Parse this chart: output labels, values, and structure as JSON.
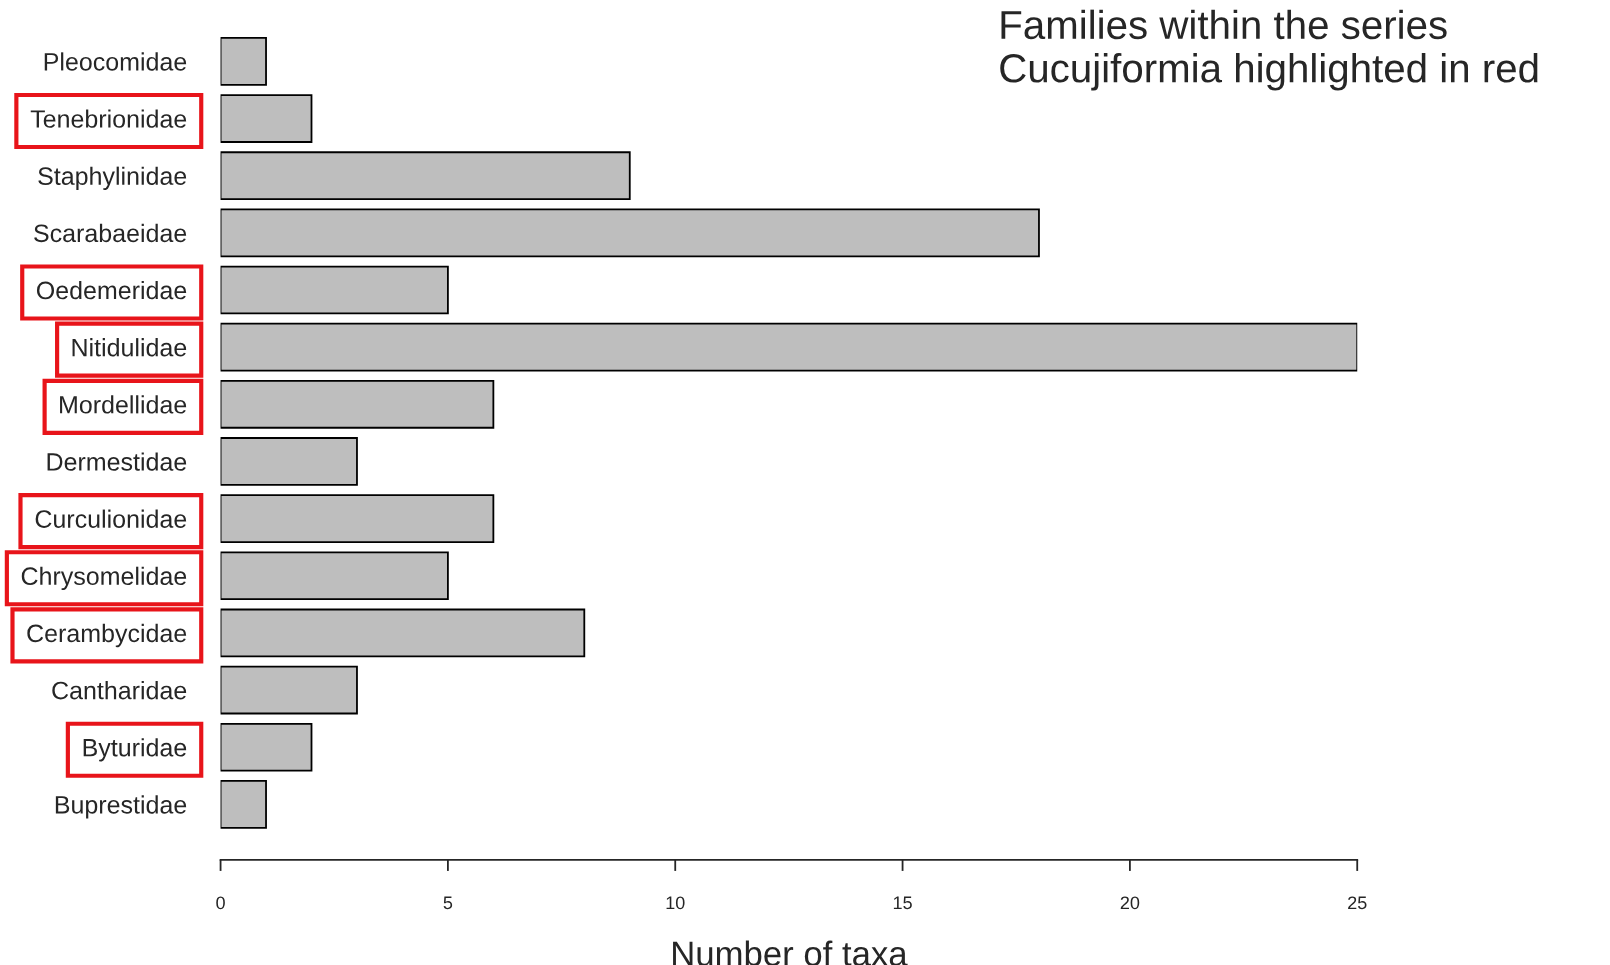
{
  "chart_data": {
    "type": "bar",
    "orientation": "horizontal",
    "title": "Families within the series Cucujiformia highlighted in red",
    "xlabel": "Number of taxa",
    "categories": [
      "Pleocomidae",
      "Tenebrionidae",
      "Staphylinidae",
      "Scarabaeidae",
      "Oedemeridae",
      "Nitidulidae",
      "Mordellidae",
      "Dermestidae",
      "Curculionidae",
      "Chrysomelidae",
      "Cerambycidae",
      "Cantharidae",
      "Byturidae",
      "Buprestidae"
    ],
    "values": [
      1,
      2,
      9,
      18,
      5,
      25,
      6,
      3,
      6,
      5,
      8,
      3,
      2,
      1
    ],
    "color": "#bebebe",
    "xlim": [
      0,
      25
    ],
    "xticks": [
      0,
      5,
      10,
      15,
      20,
      25
    ],
    "grid": false,
    "legend": false
  }
}
